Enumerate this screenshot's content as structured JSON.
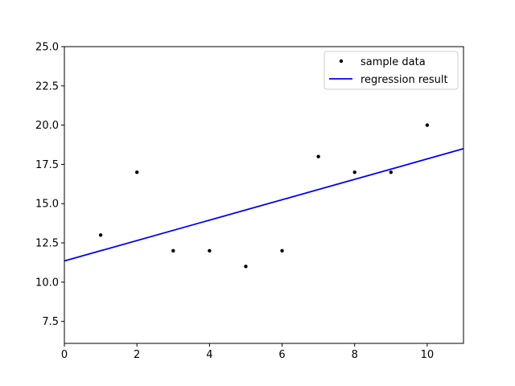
{
  "chart_data": {
    "type": "scatter",
    "title": "",
    "xlabel": "",
    "ylabel": "",
    "xlim": [
      0,
      11
    ],
    "ylim": [
      6.1,
      25.0
    ],
    "grid": false,
    "legend_placement": "top-right",
    "x_ticks": [
      0,
      2,
      4,
      6,
      8,
      10
    ],
    "x_tick_labels": [
      "0",
      "2",
      "4",
      "6",
      "8",
      "10"
    ],
    "y_ticks": [
      7.5,
      10.0,
      12.5,
      15.0,
      17.5,
      20.0,
      22.5,
      25.0
    ],
    "y_tick_labels": [
      "7.5",
      "10.0",
      "12.5",
      "15.0",
      "17.5",
      "20.0",
      "22.5",
      "25.0"
    ],
    "series": [
      {
        "name": "sample data",
        "kind": "scatter",
        "color": "#000000",
        "x": [
          1,
          2,
          3,
          4,
          5,
          6,
          7,
          8,
          9,
          10
        ],
        "y": [
          13,
          17,
          12,
          12,
          11,
          12,
          18,
          17,
          17,
          20
        ]
      },
      {
        "name": "regression result",
        "kind": "line",
        "color": "#0000ff",
        "x": [
          0,
          11
        ],
        "y": [
          11.35,
          18.5
        ]
      }
    ]
  }
}
